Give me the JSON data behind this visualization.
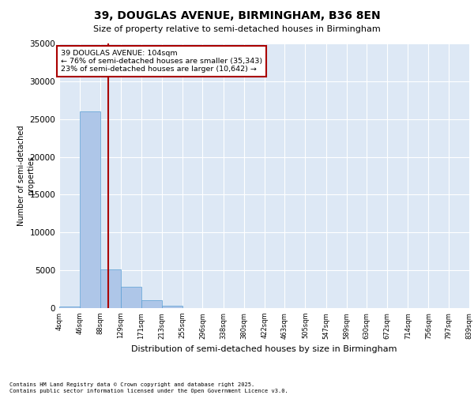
{
  "title_line1": "39, DOUGLAS AVENUE, BIRMINGHAM, B36 8EN",
  "title_line2": "Size of property relative to semi-detached houses in Birmingham",
  "xlabel": "Distribution of semi-detached houses by size in Birmingham",
  "ylabel": "Number of semi-detached\nproperties",
  "property_size": 104,
  "property_label": "39 DOUGLAS AVENUE: 104sqm",
  "pct_smaller": 76,
  "pct_larger": 23,
  "n_smaller": 35343,
  "n_larger": 10642,
  "bin_edges": [
    4,
    46,
    88,
    129,
    171,
    213,
    255,
    296,
    338,
    380,
    422,
    463,
    505,
    547,
    589,
    630,
    672,
    714,
    756,
    797,
    839
  ],
  "bin_labels": [
    "4sqm",
    "46sqm",
    "88sqm",
    "129sqm",
    "171sqm",
    "213sqm",
    "255sqm",
    "296sqm",
    "338sqm",
    "380sqm",
    "422sqm",
    "463sqm",
    "505sqm",
    "547sqm",
    "589sqm",
    "630sqm",
    "672sqm",
    "714sqm",
    "756sqm",
    "797sqm",
    "839sqm"
  ],
  "bar_heights": [
    200,
    26000,
    5100,
    2800,
    1000,
    300,
    50,
    20,
    10,
    5,
    3,
    2,
    1,
    1,
    0,
    0,
    0,
    0,
    0,
    0
  ],
  "bar_color": "#aec6e8",
  "bar_edge_color": "#5a9fd4",
  "vline_color": "#aa0000",
  "vline_x": 104,
  "annotation_box_color": "#aa0000",
  "background_color": "#dde8f5",
  "grid_color": "#ffffff",
  "ylim": [
    0,
    35000
  ],
  "yticks": [
    0,
    5000,
    10000,
    15000,
    20000,
    25000,
    30000,
    35000
  ],
  "footer_line1": "Contains HM Land Registry data © Crown copyright and database right 2025.",
  "footer_line2": "Contains public sector information licensed under the Open Government Licence v3.0."
}
